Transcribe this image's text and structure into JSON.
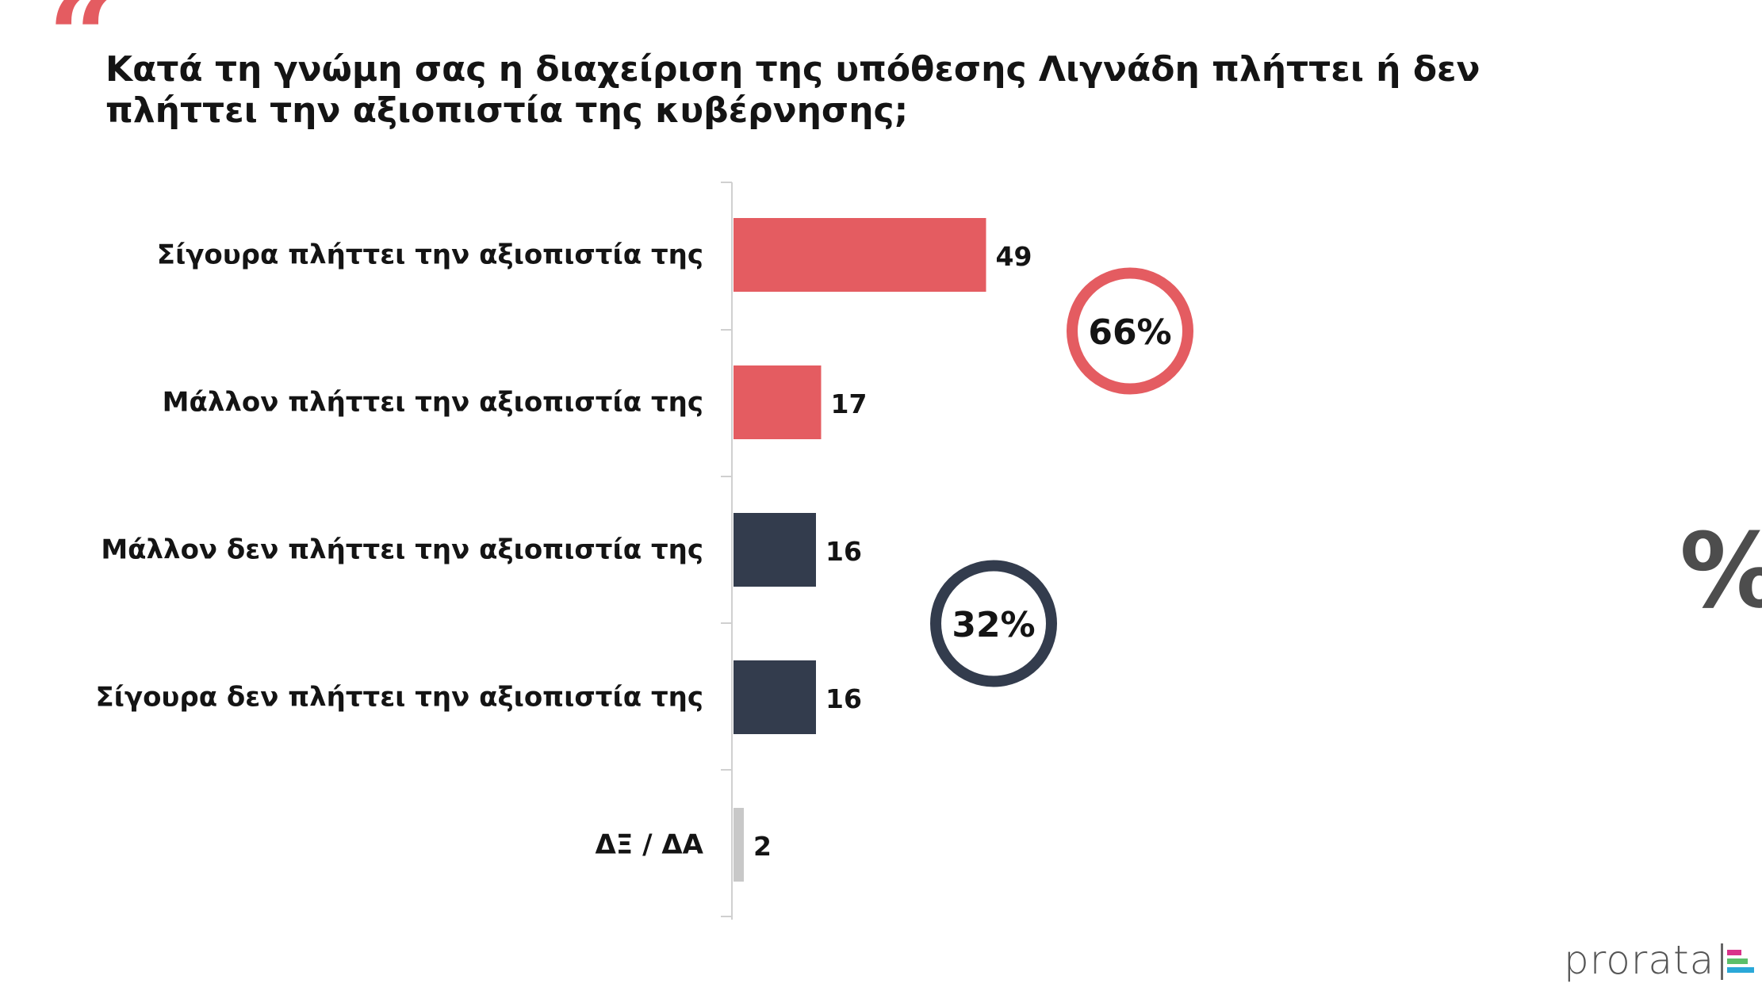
{
  "header": {
    "quote_icon": "quote-icon",
    "title": "Κατά τη γνώμη σας η διαχείριση της υπόθεσης Λιγνάδη πλήττει ή δεν πλήττει την αξιοπιστία της κυβέρνησης;"
  },
  "chart_data": {
    "type": "bar",
    "orientation": "horizontal",
    "title": "Κατά τη γνώμη σας η διαχείριση της υπόθεσης Λιγνάδη πλήττει ή δεν πλήττει την αξιοπιστία της κυβέρνησης;",
    "categories": [
      "Σίγουρα πλήττει την αξιοπιστία της",
      "Μάλλον πλήττει την αξιοπιστία της",
      "Μάλλον δεν πλήττει την αξιοπιστία της",
      "Σίγουρα δεν πλήττει την αξιοπιστία της",
      "ΔΞ / ΔΑ"
    ],
    "values": [
      49,
      17,
      16,
      16,
      2
    ],
    "value_labels": [
      "49",
      "17",
      "16",
      "16",
      "2"
    ],
    "bar_colors": [
      "#e45c61",
      "#e45c61",
      "#333c4d",
      "#333c4d",
      "#c8c8c8"
    ],
    "xlim": [
      0,
      60
    ],
    "grid": false,
    "legend": "none",
    "annotations": [
      {
        "text": "66%",
        "color": "#e45c61",
        "groups": [
          0,
          1
        ]
      },
      {
        "text": "32%",
        "color": "#333c4d",
        "groups": [
          2,
          3
        ]
      }
    ]
  },
  "decor": {
    "percent_icon": "percent-icon",
    "percent_glyph": "%"
  },
  "branding": {
    "name": "prorata",
    "logo_icon": "prorata-bars-icon",
    "colors": [
      "#d9328a",
      "#5bbf6a",
      "#2aa8d8"
    ]
  }
}
